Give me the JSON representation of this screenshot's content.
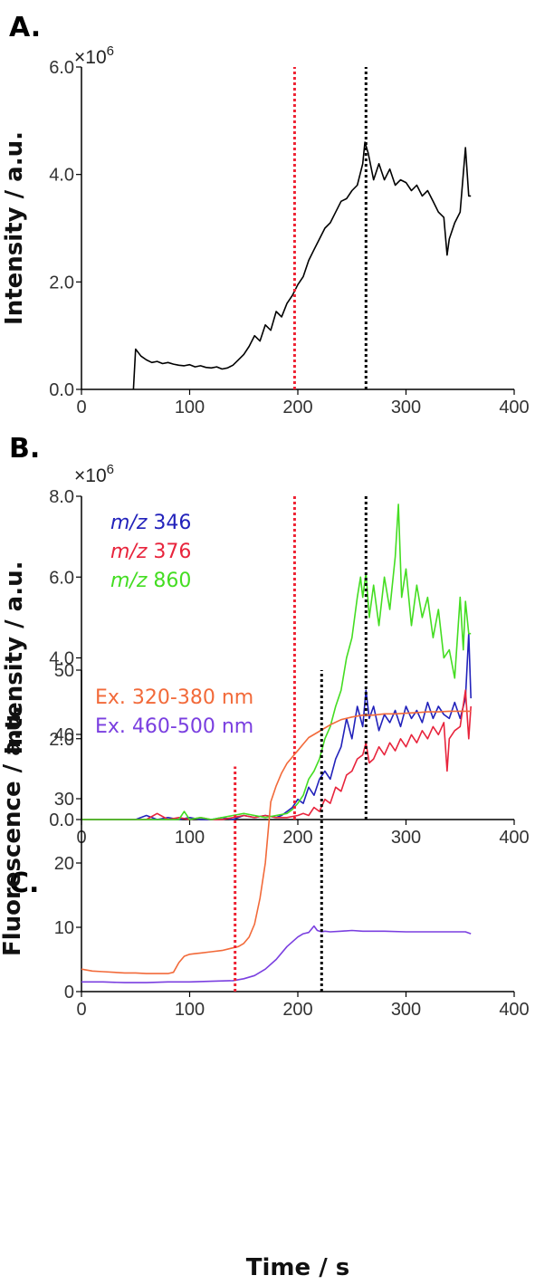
{
  "colors": {
    "black": "#000000",
    "blue": "#2222bb",
    "red": "#e8243c",
    "green": "#44dd22",
    "orange": "#f26a3a",
    "purple": "#7a3fe0",
    "marker_red": "#ee2233",
    "marker_black": "#000000"
  },
  "chart_data": [
    {
      "panel": "A.",
      "type": "line",
      "ylabel": "Intensity / a.u.",
      "multiplier_prefix": "×10",
      "multiplier_exp": "6",
      "xlim": [
        0,
        400
      ],
      "ylim": [
        0,
        6.0
      ],
      "xticks": [
        "0",
        "100",
        "200",
        "300",
        "400"
      ],
      "yticks": [
        "0.0",
        "2.0",
        "4.0",
        "6.0"
      ],
      "vlines": [
        {
          "x": 197,
          "color": "red"
        },
        {
          "x": 263,
          "color": "black"
        }
      ],
      "series": [
        {
          "color": "black",
          "x": [
            48,
            50,
            55,
            60,
            65,
            70,
            75,
            80,
            85,
            90,
            95,
            100,
            105,
            110,
            115,
            120,
            125,
            130,
            135,
            140,
            145,
            150,
            155,
            160,
            165,
            170,
            175,
            180,
            185,
            190,
            195,
            200,
            205,
            210,
            215,
            220,
            225,
            230,
            235,
            240,
            245,
            250,
            255,
            260,
            262,
            265,
            270,
            275,
            280,
            285,
            290,
            295,
            300,
            305,
            310,
            315,
            320,
            325,
            330,
            335,
            338,
            340,
            345,
            350,
            355,
            358,
            360
          ],
          "y": [
            0,
            0.75,
            0.62,
            0.55,
            0.5,
            0.52,
            0.48,
            0.5,
            0.47,
            0.45,
            0.44,
            0.46,
            0.42,
            0.44,
            0.41,
            0.4,
            0.42,
            0.38,
            0.4,
            0.45,
            0.55,
            0.65,
            0.8,
            1.0,
            0.9,
            1.2,
            1.1,
            1.45,
            1.35,
            1.6,
            1.75,
            1.95,
            2.1,
            2.4,
            2.6,
            2.8,
            3.0,
            3.1,
            3.3,
            3.5,
            3.55,
            3.7,
            3.8,
            4.2,
            4.6,
            4.4,
            3.9,
            4.2,
            3.9,
            4.1,
            3.8,
            3.9,
            3.85,
            3.7,
            3.8,
            3.6,
            3.7,
            3.5,
            3.3,
            3.2,
            2.5,
            2.8,
            3.1,
            3.3,
            4.5,
            3.6,
            3.6
          ]
        }
      ]
    },
    {
      "panel": "B.",
      "type": "line",
      "ylabel": "Intensity / a.u.",
      "multiplier_prefix": "×10",
      "multiplier_exp": "6",
      "xlim": [
        0,
        400
      ],
      "ylim": [
        0,
        8.0
      ],
      "xticks": [
        "0",
        "100",
        "200",
        "300",
        "400"
      ],
      "yticks": [
        "0.0",
        "2.0",
        "4.0",
        "6.0",
        "8.0"
      ],
      "vlines": [
        {
          "x": 197,
          "color": "red"
        },
        {
          "x": 263,
          "color": "black"
        }
      ],
      "legend": [
        {
          "italic": "m/z",
          "text": " 346",
          "color": "blue"
        },
        {
          "italic": "m/z",
          "text": " 376",
          "color": "red"
        },
        {
          "italic": "m/z",
          "text": " 860",
          "color": "green"
        }
      ],
      "series": [
        {
          "name": "m/z 346",
          "color": "blue",
          "x": [
            0,
            50,
            60,
            70,
            80,
            90,
            100,
            110,
            120,
            130,
            140,
            150,
            160,
            170,
            180,
            185,
            190,
            195,
            200,
            205,
            210,
            215,
            220,
            225,
            230,
            235,
            240,
            245,
            250,
            255,
            260,
            263,
            266,
            270,
            275,
            280,
            285,
            290,
            295,
            300,
            305,
            310,
            315,
            320,
            325,
            330,
            335,
            340,
            345,
            350,
            355,
            358,
            360
          ],
          "y": [
            0,
            0,
            0.1,
            0,
            0.05,
            0,
            0.05,
            0,
            0,
            0.05,
            0,
            0.1,
            0.05,
            0.1,
            0.05,
            0.1,
            0.2,
            0.3,
            0.5,
            0.4,
            0.8,
            0.6,
            1.0,
            1.2,
            1.0,
            1.5,
            1.8,
            2.5,
            2.0,
            2.8,
            2.3,
            3.2,
            2.5,
            2.8,
            2.2,
            2.6,
            2.4,
            2.7,
            2.3,
            2.8,
            2.5,
            2.7,
            2.4,
            2.9,
            2.5,
            2.8,
            2.6,
            2.5,
            2.9,
            2.5,
            3.0,
            4.6,
            3.0
          ]
        },
        {
          "name": "m/z 376",
          "color": "red",
          "x": [
            0,
            60,
            70,
            80,
            90,
            100,
            110,
            120,
            130,
            140,
            150,
            160,
            170,
            180,
            190,
            200,
            205,
            210,
            215,
            220,
            225,
            230,
            235,
            240,
            245,
            250,
            255,
            260,
            263,
            266,
            270,
            275,
            280,
            285,
            290,
            295,
            300,
            305,
            310,
            315,
            320,
            325,
            330,
            335,
            338,
            340,
            345,
            350,
            355,
            358,
            360
          ],
          "y": [
            0,
            0,
            0.15,
            0,
            0.05,
            0,
            0.05,
            0,
            0,
            0.05,
            0.1,
            0.05,
            0.1,
            0.05,
            0.05,
            0.1,
            0.15,
            0.1,
            0.3,
            0.2,
            0.5,
            0.4,
            0.8,
            0.7,
            1.1,
            1.2,
            1.5,
            1.6,
            1.9,
            1.4,
            1.5,
            1.8,
            1.6,
            1.9,
            1.7,
            2.0,
            1.8,
            2.1,
            1.9,
            2.2,
            2.0,
            2.3,
            2.1,
            2.4,
            1.2,
            2.0,
            2.2,
            2.3,
            3.2,
            2.0,
            2.8
          ]
        },
        {
          "name": "m/z 860",
          "color": "green",
          "x": [
            0,
            90,
            95,
            100,
            110,
            120,
            130,
            140,
            150,
            160,
            170,
            180,
            190,
            195,
            200,
            205,
            210,
            215,
            220,
            225,
            230,
            235,
            240,
            245,
            250,
            255,
            258,
            260,
            263,
            266,
            270,
            275,
            280,
            285,
            290,
            293,
            296,
            300,
            305,
            310,
            315,
            320,
            325,
            330,
            335,
            340,
            345,
            350,
            353,
            355,
            358,
            360
          ],
          "y": [
            0,
            0,
            0.2,
            0,
            0.05,
            0,
            0.05,
            0.1,
            0.15,
            0.1,
            0.05,
            0.1,
            0.15,
            0.25,
            0.4,
            0.6,
            1.0,
            1.2,
            1.5,
            2.0,
            2.3,
            2.8,
            3.2,
            4.0,
            4.5,
            5.5,
            6.0,
            5.5,
            6.1,
            5.0,
            5.8,
            4.8,
            6.0,
            5.2,
            6.5,
            7.8,
            5.5,
            6.2,
            4.8,
            5.8,
            5.0,
            5.5,
            4.5,
            5.2,
            4.0,
            4.2,
            3.5,
            5.5,
            4.2,
            5.4,
            4.6,
            4.6
          ]
        }
      ]
    },
    {
      "panel": "C.",
      "type": "line",
      "ylabel": "Fluorescence / a.u.",
      "xlabel": "Time / s",
      "xlim": [
        0,
        400
      ],
      "ylim": [
        0,
        50
      ],
      "xticks": [
        "0",
        "100",
        "200",
        "300",
        "400"
      ],
      "yticks": [
        "0",
        "10",
        "20",
        "30",
        "40",
        "50"
      ],
      "vlines": [
        {
          "x": 142,
          "color": "red",
          "ymax": 35
        },
        {
          "x": 222,
          "color": "black",
          "ymax": 50
        }
      ],
      "legend": [
        {
          "italic": "",
          "text": "Ex. 320-380 nm",
          "color": "orange"
        },
        {
          "italic": "",
          "text": "Ex. 460-500 nm",
          "color": "purple"
        }
      ],
      "series": [
        {
          "name": "Ex. 320-380 nm",
          "color": "orange",
          "x": [
            0,
            10,
            20,
            30,
            40,
            50,
            60,
            70,
            80,
            85,
            90,
            95,
            100,
            105,
            110,
            120,
            130,
            140,
            145,
            150,
            155,
            160,
            165,
            170,
            175,
            180,
            185,
            190,
            195,
            200,
            205,
            210,
            220,
            230,
            240,
            250,
            260,
            270,
            280,
            290,
            300,
            310,
            320,
            330,
            340,
            350,
            360
          ],
          "y": [
            3.5,
            3.2,
            3.1,
            3.0,
            2.9,
            2.9,
            2.8,
            2.8,
            2.8,
            3.0,
            4.5,
            5.5,
            5.8,
            5.9,
            6.0,
            6.2,
            6.4,
            6.8,
            7.0,
            7.5,
            8.5,
            10.5,
            14.5,
            20.0,
            29.5,
            32.0,
            34.0,
            35.5,
            36.5,
            37.5,
            38.5,
            39.5,
            40.5,
            41.5,
            42.3,
            42.7,
            43.0,
            43.0,
            43.2,
            43.2,
            43.3,
            43.4,
            43.5,
            43.5,
            43.6,
            43.6,
            43.6
          ]
        },
        {
          "name": "Ex. 460-500 nm",
          "color": "purple",
          "x": [
            0,
            20,
            40,
            60,
            80,
            100,
            120,
            140,
            150,
            160,
            170,
            180,
            190,
            200,
            205,
            210,
            215,
            218,
            222,
            225,
            230,
            240,
            250,
            260,
            280,
            300,
            320,
            340,
            355,
            360
          ],
          "y": [
            1.5,
            1.5,
            1.4,
            1.4,
            1.5,
            1.5,
            1.6,
            1.7,
            2.0,
            2.5,
            3.5,
            5.0,
            7.0,
            8.5,
            9.0,
            9.2,
            10.2,
            9.5,
            9.3,
            9.4,
            9.3,
            9.4,
            9.5,
            9.4,
            9.4,
            9.3,
            9.3,
            9.3,
            9.3,
            9.0
          ]
        }
      ]
    }
  ]
}
